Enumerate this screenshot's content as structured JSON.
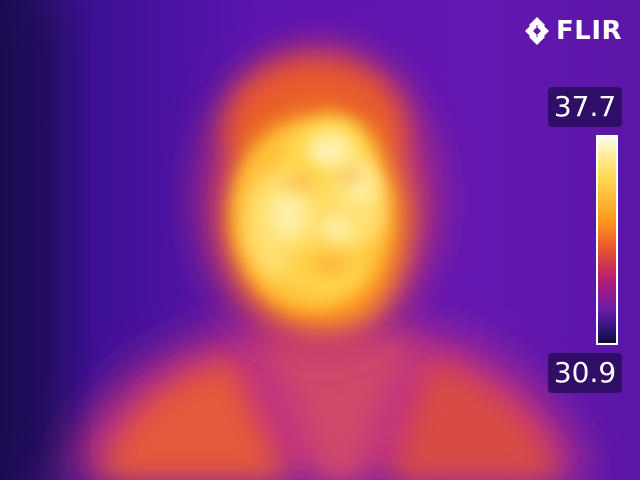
{
  "brand": {
    "name": "FLIR",
    "logo_icon": "flir-diamond-icon"
  },
  "scale": {
    "max": "37.7",
    "min": "30.9",
    "palette": "iron",
    "colors": {
      "hottest": "#fbfbf0",
      "hot": "#ffd24a",
      "warm": "#ff9a1e",
      "mid": "#e8502e",
      "cool": "#b21a78",
      "cold": "#6a1ca6",
      "coldest": "#0d0c3a"
    }
  }
}
